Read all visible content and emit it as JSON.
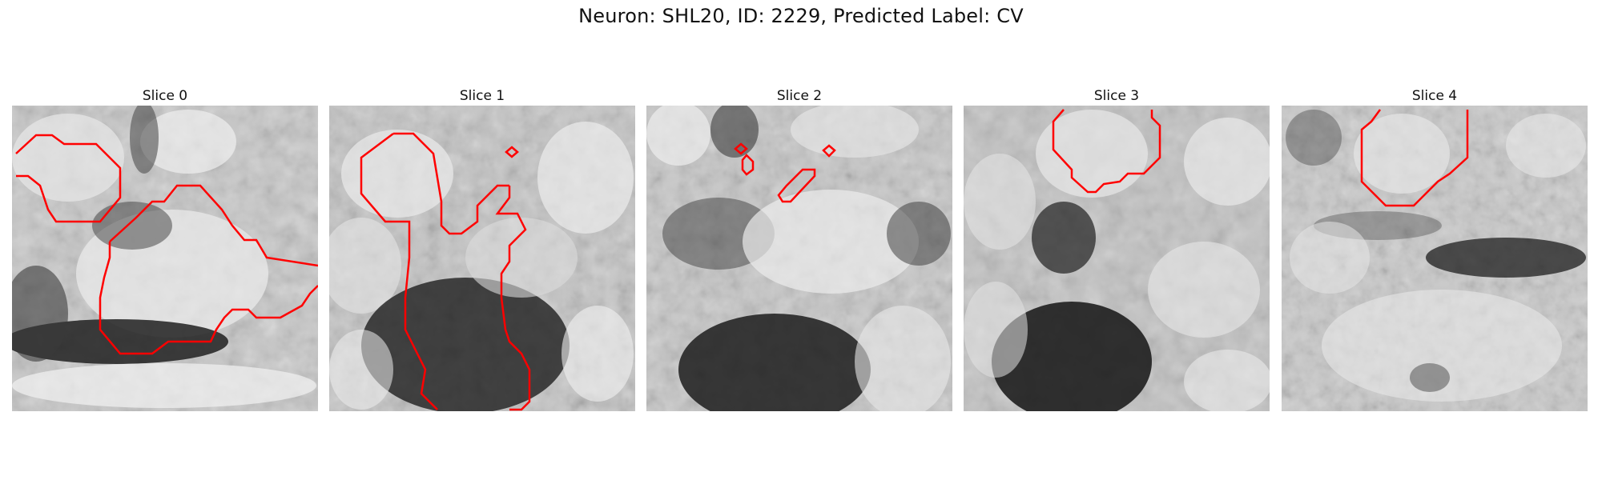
{
  "figure": {
    "title": "Neuron: SHL20, ID: 2229, Predicted Label: CV"
  },
  "panels": [
    {
      "title": "Slice 0"
    },
    {
      "title": "Slice 1"
    },
    {
      "title": "Slice 2"
    },
    {
      "title": "Slice 3"
    },
    {
      "title": "Slice 4"
    }
  ],
  "colors": {
    "contour": "#ff0000",
    "background": "#ffffff"
  }
}
